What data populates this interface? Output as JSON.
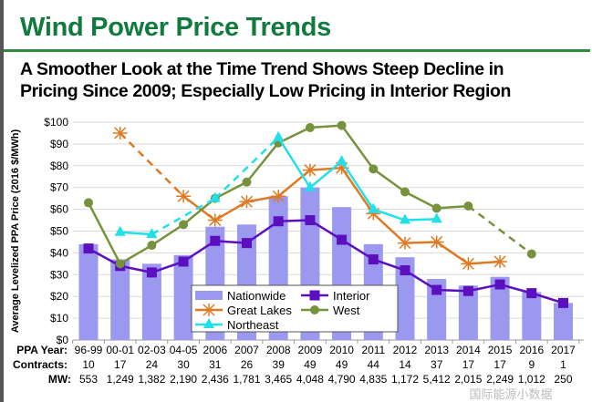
{
  "slide": {
    "title": "Wind Power Price Trends",
    "subtitle_line1": "A Smoother Look at the Time Trend Shows Steep Decline in",
    "subtitle_line2": "Pricing Since 2009; Especially Low Pricing in Interior Region",
    "watermark": "国际能源小数据"
  },
  "chart_data": {
    "type": "bar+line",
    "ylabel": "Average Levelized PPA Price (2016 $/MWh)",
    "ylim": [
      0,
      100
    ],
    "yticks": [
      "$0",
      "$10",
      "$20",
      "$30",
      "$40",
      "$50",
      "$60",
      "$70",
      "$80",
      "$90",
      "$100"
    ],
    "grid": true,
    "legend_placement": "bottom-center",
    "categories": [
      "96-99",
      "00-01",
      "02-03",
      "04-05",
      "2006",
      "2007",
      "2008",
      "2009",
      "2010",
      "2011",
      "2012",
      "2013",
      "2014",
      "2015",
      "2016",
      "2017"
    ],
    "table": {
      "row_labels": [
        "PPA Year:",
        "Contracts:",
        "MW:"
      ],
      "contracts": [
        "10",
        "17",
        "24",
        "30",
        "31",
        "26",
        "39",
        "49",
        "49",
        "44",
        "14",
        "37",
        "17",
        "17",
        "9",
        "1"
      ],
      "mw": [
        "553",
        "1,249",
        "1,382",
        "2,190",
        "2,436",
        "1,781",
        "3,465",
        "4,048",
        "4,790",
        "4,835",
        "1,172",
        "5,412",
        "2,015",
        "2,249",
        "1,012",
        "250"
      ]
    },
    "series": [
      {
        "name": "Nationwide",
        "kind": "bar",
        "color": "#9b98f0",
        "values": [
          44,
          37,
          35,
          39,
          52,
          53,
          66,
          70,
          61,
          44,
          38,
          28,
          25,
          29,
          22,
          17
        ]
      },
      {
        "name": "Interior",
        "kind": "line",
        "marker": "square",
        "color": "#5b0fbf",
        "values": [
          42,
          34,
          31,
          36,
          45.5,
          44.5,
          54.5,
          55,
          46,
          37,
          32,
          23,
          22.5,
          25.5,
          21.5,
          17
        ]
      },
      {
        "name": "Great Lakes",
        "kind": "line",
        "marker": "asterisk",
        "color": "#e07a22",
        "values": [
          null,
          95,
          null,
          66,
          55,
          63.5,
          66,
          78,
          79,
          58,
          44.5,
          45,
          35,
          36,
          null,
          null
        ]
      },
      {
        "name": "West",
        "kind": "line",
        "marker": "circle",
        "color": "#76923c",
        "values": [
          63,
          35,
          43.5,
          53,
          65,
          72.5,
          90.5,
          97.5,
          98.5,
          78.5,
          68,
          60.5,
          61.5,
          null,
          39.5,
          null
        ]
      },
      {
        "name": "Northeast",
        "kind": "line",
        "marker": "triangle",
        "color": "#22e0ea",
        "values": [
          null,
          49.5,
          48.5,
          null,
          65,
          null,
          93,
          70,
          82,
          60,
          55,
          55.5,
          null,
          null,
          null,
          null
        ]
      }
    ]
  }
}
